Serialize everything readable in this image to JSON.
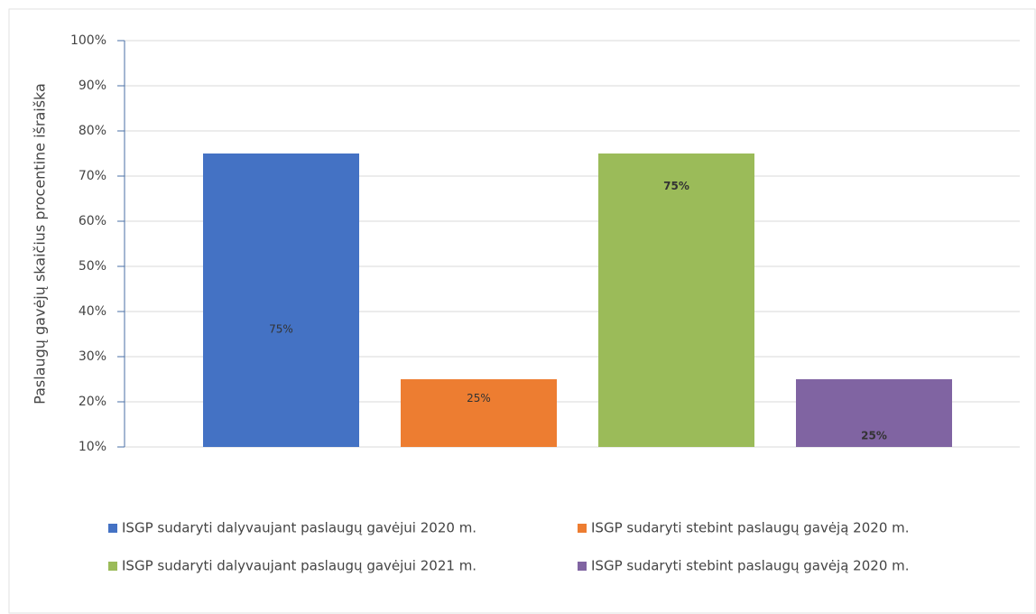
{
  "chart_data": {
    "type": "bar",
    "y_label": "Paslaugų gavėjų skaičius procentine išraiška",
    "series": [
      {
        "name": "ISGP sudaryti dalyvaujant paslaugų gavėjui 2020 m.",
        "color": "#4472c4",
        "values": [
          75
        ],
        "value_labels": [
          "75%"
        ]
      },
      {
        "name": "ISGP sudaryti stebint paslaugų gavėją 2020 m.",
        "color": "#ed7d31",
        "values": [
          25
        ],
        "value_labels": [
          "25%"
        ]
      },
      {
        "name": "ISGP sudaryti dalyvaujant paslaugų gavėjui 2021 m.",
        "color": "#9bbb59",
        "values": [
          75
        ],
        "value_labels": [
          "75%"
        ]
      },
      {
        "name": "ISGP sudaryti stebint paslaugų gavėją 2020 m.",
        "color": "#8064a2",
        "values": [
          25
        ],
        "value_labels": [
          "25%"
        ]
      }
    ],
    "ylim": [
      10,
      100
    ],
    "yticks": [
      {
        "value": 10,
        "label": "10%"
      },
      {
        "value": 20,
        "label": "20%"
      },
      {
        "value": 30,
        "label": "30%"
      },
      {
        "value": 40,
        "label": "40%"
      },
      {
        "value": 50,
        "label": "50%"
      },
      {
        "value": 60,
        "label": "60%"
      },
      {
        "value": 70,
        "label": "70%"
      },
      {
        "value": 80,
        "label": "80%"
      },
      {
        "value": 90,
        "label": "90%"
      },
      {
        "value": 100,
        "label": "100%"
      }
    ],
    "grid": true
  }
}
